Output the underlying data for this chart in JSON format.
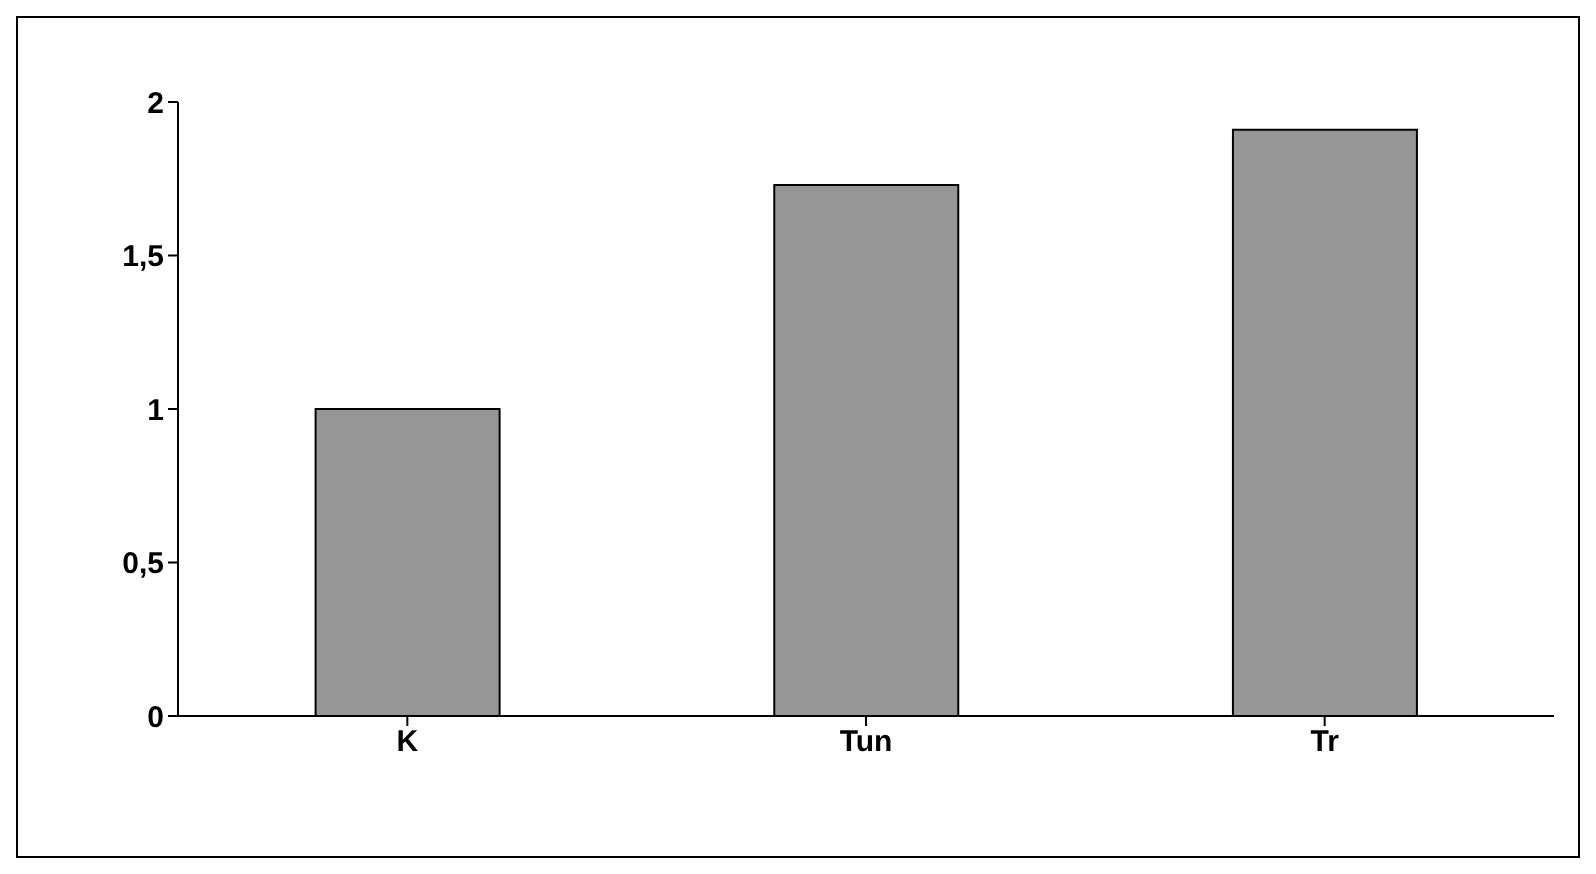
{
  "chart_data": {
    "type": "bar",
    "categories": [
      "K",
      "Tun",
      "Tr"
    ],
    "values": [
      1.0,
      1.73,
      1.91
    ],
    "color": "#969696",
    "ylim": [
      0,
      2
    ],
    "yticks": [
      0,
      {
        "value": 0.5,
        "label": "0,5"
      },
      1,
      {
        "value": 1.5,
        "label": "1,5"
      },
      2
    ],
    "grid": false
  }
}
